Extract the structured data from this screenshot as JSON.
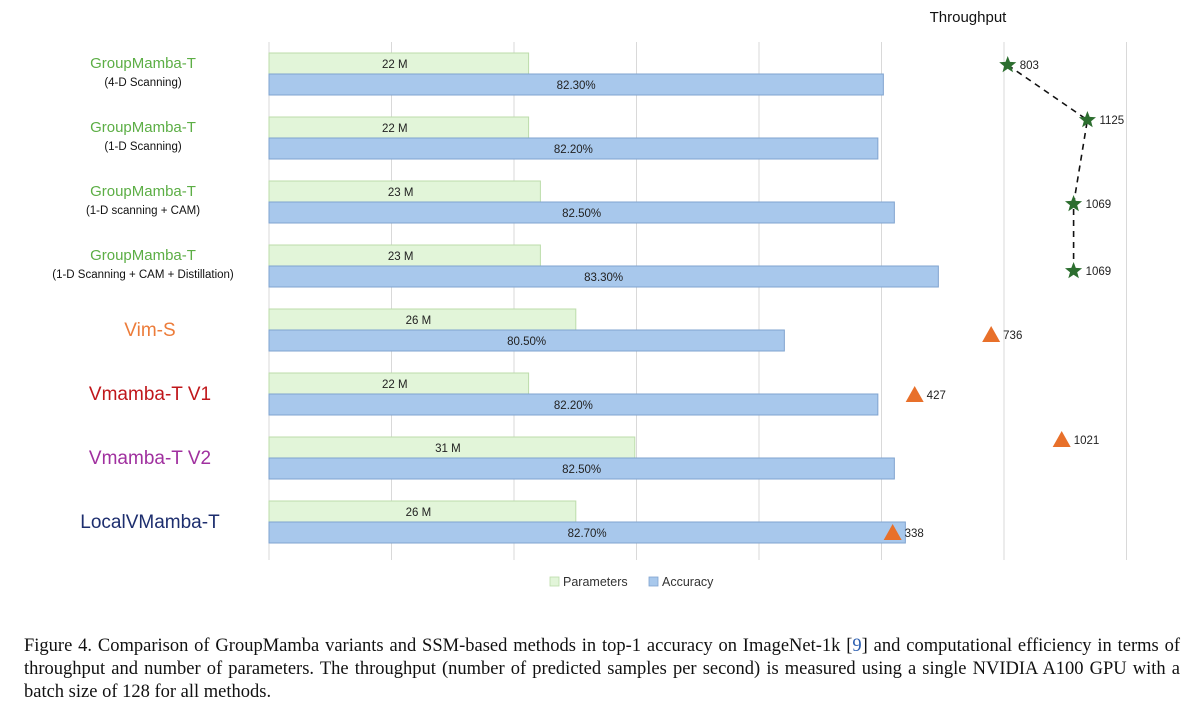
{
  "chart_data": {
    "type": "bar",
    "orientation": "horizontal",
    "categories": [
      {
        "name": "GroupMamba-T",
        "sub": "(4-D Scanning)",
        "color": "#5cae45"
      },
      {
        "name": "GroupMamba-T",
        "sub": "(1-D Scanning)",
        "color": "#5cae45"
      },
      {
        "name": "GroupMamba-T",
        "sub": "(1-D scanning + CAM)",
        "color": "#5cae45"
      },
      {
        "name": "GroupMamba-T",
        "sub": "(1-D Scanning + CAM + Distillation)",
        "color": "#5cae45"
      },
      {
        "name": "Vim-S",
        "sub": "",
        "color": "#ec7c3a"
      },
      {
        "name": "Vmamba-T V1",
        "sub": "",
        "color": "#c0171b"
      },
      {
        "name": "Vmamba-T V2",
        "sub": "",
        "color": "#a0309f"
      },
      {
        "name": "LocalVMamba-T",
        "sub": "",
        "color": "#1d2e6e"
      }
    ],
    "series": [
      {
        "name": "Parameters",
        "color": "#e2f5d9",
        "stroke": "#bcdcaa",
        "values": [
          22,
          22,
          23,
          23,
          26,
          22,
          31,
          26
        ],
        "labels": [
          "22 M",
          "22 M",
          "23 M",
          "23 M",
          "26 M",
          "22 M",
          "31 M",
          "26 M"
        ]
      },
      {
        "name": "Accuracy",
        "color": "#a8c8ec",
        "stroke": "#7fa3cf",
        "values": [
          82.3,
          82.2,
          82.5,
          83.3,
          80.5,
          82.2,
          82.5,
          82.7
        ],
        "labels": [
          "82.30%",
          "82.20%",
          "82.50%",
          "83.30%",
          "80.50%",
          "82.20%",
          "82.50%",
          "82.70%"
        ]
      }
    ],
    "throughput": {
      "title": "Throughput",
      "values": [
        803,
        1125,
        1069,
        1069,
        736,
        427,
        1021,
        338
      ],
      "markers": [
        "star",
        "star",
        "star",
        "star",
        "triangle",
        "triangle",
        "triangle",
        "triangle"
      ],
      "star_color": "#2c6e2f",
      "triangle_color": "#e8702a",
      "connect": [
        0,
        1,
        2,
        3
      ]
    },
    "legend": "bottom",
    "grid": true
  },
  "caption": {
    "part1": "Figure 4.  Comparison of GroupMamba variants and SSM-based methods in top-1 accuracy on ImageNet-1k [",
    "ref": "9",
    "part2": "] and computational efficiency in terms of throughput and number of parameters. The throughput (number of predicted samples per second) is measured using a single NVIDIA A100 GPU with a batch size of 128 for all methods."
  }
}
